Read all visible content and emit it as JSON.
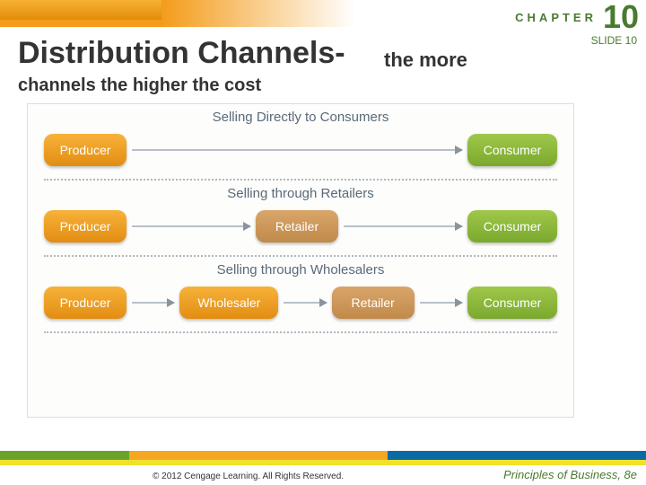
{
  "header": {
    "chapter_label": "CHAPTER",
    "chapter_num": "10",
    "slide_label": "SLIDE 10"
  },
  "title": {
    "main": "Distribution Channels-",
    "sub1": "the more",
    "sub2": "channels the higher the cost"
  },
  "diagram": {
    "type": "flowchart",
    "background_color": "#fdfdfb",
    "arrow_color": "#8a94a0",
    "divider_color": "#b0b8bf",
    "node_styles": {
      "producer": {
        "fill_top": "#f7b23a",
        "fill_bottom": "#e28d12",
        "text_color": "#ffffff"
      },
      "wholesaler": {
        "fill_top": "#f7b23a",
        "fill_bottom": "#e28d12",
        "text_color": "#ffffff"
      },
      "retailer": {
        "fill_top": "#d9a56a",
        "fill_bottom": "#c08a4a",
        "text_color": "#ffffff"
      },
      "consumer": {
        "fill_top": "#9fc84a",
        "fill_bottom": "#7ba82e",
        "text_color": "#ffffff"
      }
    },
    "sections": [
      {
        "label": "Selling Directly to Consumers",
        "nodes": [
          "Producer",
          "Consumer"
        ]
      },
      {
        "label": "Selling through Retailers",
        "nodes": [
          "Producer",
          "Retailer",
          "Consumer"
        ]
      },
      {
        "label": "Selling through Wholesalers",
        "nodes": [
          "Producer",
          "Wholesaler",
          "Retailer",
          "Consumer"
        ]
      }
    ]
  },
  "footer": {
    "stripe_colors": [
      "#6aa329",
      "#f5a623",
      "#0a6aa3",
      "#f0e12a"
    ],
    "copyright": "© 2012 Cengage Learning. All Rights Reserved.",
    "book": "Principles of Business, 8e"
  }
}
